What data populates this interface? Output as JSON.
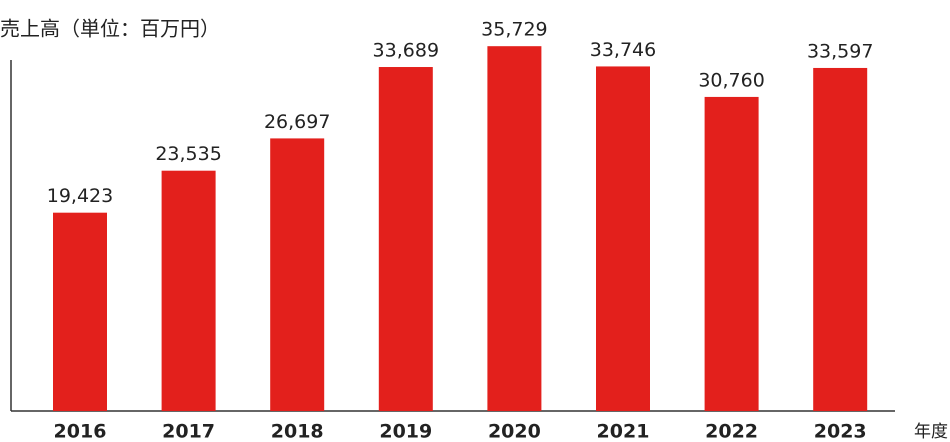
{
  "chart_data": {
    "type": "bar",
    "title": "売上高（単位：百万円）",
    "x_label": "年度",
    "categories": [
      "2016",
      "2017",
      "2018",
      "2019",
      "2020",
      "2021",
      "2022",
      "2023"
    ],
    "values": [
      19423,
      23535,
      26697,
      33689,
      35729,
      33746,
      30760,
      33597
    ],
    "value_labels": [
      "19,423",
      "23,535",
      "26,697",
      "33,689",
      "35,729",
      "33,746",
      "30,760",
      "33,597"
    ],
    "color": "#e3201c",
    "ylim": [
      0,
      38000
    ]
  }
}
